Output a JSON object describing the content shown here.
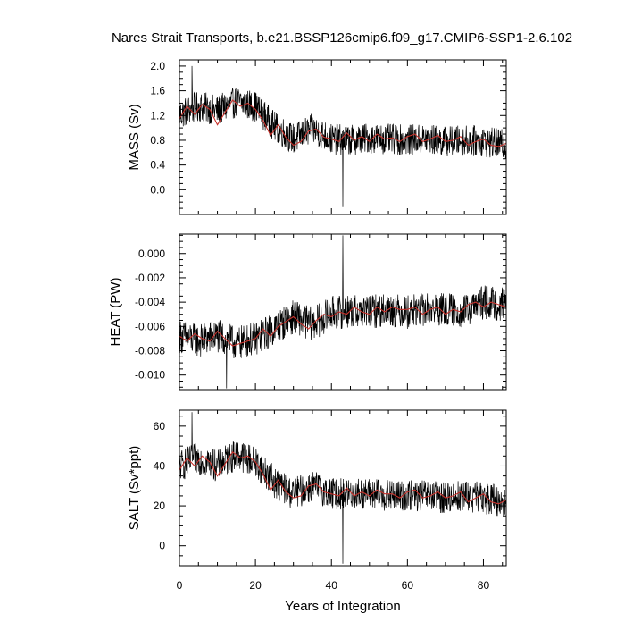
{
  "page_title": "Nares Strait Transports, b.e21.BSSP126cmip6.f09_g17.CMIP6-SSP1-2.6.102",
  "chart_data": [
    {
      "type": "line",
      "ylabel": "MASS (Sv)",
      "xlabel": "Years of Integration",
      "xlim": [
        0,
        86
      ],
      "ylim": [
        -0.4,
        2.1
      ],
      "yticks": [
        0.0,
        0.4,
        0.8,
        1.2,
        1.6,
        2.0
      ],
      "ytick_labels": [
        "0.0",
        "0.4",
        "0.8",
        "1.2",
        "1.6",
        "2.0"
      ],
      "grid": false,
      "series": [
        {
          "role": "monthly",
          "color": "#000000",
          "anchors_x": [
            0,
            5,
            10,
            15,
            20,
            25,
            30,
            35,
            40,
            45,
            50,
            55,
            60,
            65,
            70,
            75,
            80,
            86
          ],
          "anchors_y": [
            1.22,
            1.35,
            1.28,
            1.42,
            1.35,
            1.02,
            0.82,
            0.98,
            0.82,
            0.8,
            0.84,
            0.82,
            0.8,
            0.82,
            0.78,
            0.8,
            0.78,
            0.72
          ],
          "noise": 0.25,
          "spikes": [
            {
              "x": 43.0,
              "y": -0.28
            },
            {
              "x": 3.3,
              "y": 2.0
            }
          ]
        },
        {
          "role": "smoothed",
          "color": "#c8322c",
          "anchors_x": [
            0,
            2,
            4,
            6,
            8,
            10,
            12,
            14,
            16,
            18,
            20,
            22,
            24,
            26,
            28,
            30,
            32,
            34,
            36,
            38,
            40,
            42,
            44,
            46,
            48,
            50,
            52,
            54,
            56,
            58,
            60,
            62,
            64,
            66,
            68,
            70,
            72,
            74,
            76,
            78,
            80,
            82,
            84,
            86
          ],
          "anchors_y": [
            1.15,
            1.35,
            1.22,
            1.38,
            1.3,
            1.05,
            1.25,
            1.45,
            1.35,
            1.4,
            1.3,
            1.12,
            0.88,
            1.05,
            0.85,
            0.72,
            0.78,
            0.95,
            0.98,
            0.85,
            0.82,
            0.78,
            0.92,
            0.8,
            0.86,
            0.78,
            0.9,
            0.82,
            0.84,
            0.78,
            0.86,
            0.9,
            0.78,
            0.82,
            0.88,
            0.78,
            0.8,
            0.86,
            0.72,
            0.78,
            0.82,
            0.72,
            0.7,
            0.75
          ]
        }
      ]
    },
    {
      "type": "line",
      "ylabel": "HEAT (PW)",
      "xlabel": "Years of Integration",
      "xlim": [
        0,
        86
      ],
      "ylim": [
        -0.0112,
        0.0016
      ],
      "yticks": [
        0.0,
        -0.002,
        -0.004,
        -0.006,
        -0.008,
        -0.01
      ],
      "ytick_labels": [
        "0.000",
        "-0.002",
        "-0.004",
        "-0.006",
        "-0.008",
        "-0.010"
      ],
      "grid": false,
      "series": [
        {
          "role": "monthly",
          "color": "#000000",
          "anchors_x": [
            0,
            5,
            10,
            15,
            20,
            25,
            30,
            35,
            40,
            45,
            50,
            55,
            60,
            65,
            70,
            75,
            80,
            86
          ],
          "anchors_y": [
            -0.0068,
            -0.0072,
            -0.0068,
            -0.0074,
            -0.007,
            -0.0062,
            -0.0052,
            -0.0058,
            -0.0049,
            -0.0047,
            -0.0048,
            -0.0046,
            -0.0048,
            -0.0046,
            -0.0046,
            -0.0048,
            -0.004,
            -0.0042
          ],
          "noise": 0.0014,
          "spikes": [
            {
              "x": 43.0,
              "y": 0.0015
            },
            {
              "x": 12.4,
              "y": -0.0111
            }
          ]
        },
        {
          "role": "smoothed",
          "color": "#c8322c",
          "anchors_x": [
            0,
            2,
            4,
            6,
            8,
            10,
            12,
            14,
            16,
            18,
            20,
            22,
            24,
            26,
            28,
            30,
            32,
            34,
            36,
            38,
            40,
            42,
            44,
            46,
            48,
            50,
            52,
            54,
            56,
            58,
            60,
            62,
            64,
            66,
            68,
            70,
            72,
            74,
            76,
            78,
            80,
            82,
            84,
            86
          ],
          "anchors_y": [
            -0.0068,
            -0.0072,
            -0.0066,
            -0.007,
            -0.0072,
            -0.0064,
            -0.007,
            -0.0076,
            -0.0074,
            -0.0072,
            -0.007,
            -0.0062,
            -0.0068,
            -0.006,
            -0.0056,
            -0.0052,
            -0.0058,
            -0.0062,
            -0.0055,
            -0.005,
            -0.0052,
            -0.0048,
            -0.005,
            -0.0044,
            -0.0048,
            -0.005,
            -0.0044,
            -0.0048,
            -0.0044,
            -0.0046,
            -0.0046,
            -0.0044,
            -0.005,
            -0.0046,
            -0.0044,
            -0.005,
            -0.0046,
            -0.0048,
            -0.0042,
            -0.004,
            -0.0044,
            -0.004,
            -0.0042,
            -0.0044
          ]
        }
      ]
    },
    {
      "type": "line",
      "ylabel": "SALT (Sv*ppt)",
      "xlabel": "Years of Integration",
      "xlim": [
        0,
        86
      ],
      "ylim": [
        -10,
        68
      ],
      "yticks": [
        0,
        20,
        40,
        60
      ],
      "ytick_labels": [
        "0",
        "20",
        "40",
        "60"
      ],
      "grid": false,
      "series": [
        {
          "role": "monthly",
          "color": "#000000",
          "anchors_x": [
            0,
            5,
            10,
            15,
            20,
            25,
            30,
            35,
            40,
            45,
            50,
            55,
            60,
            65,
            70,
            75,
            80,
            86
          ],
          "anchors_y": [
            40,
            44,
            40,
            46,
            42,
            32,
            26,
            30,
            26,
            26,
            26,
            25,
            25,
            25,
            24,
            25,
            24,
            22
          ],
          "noise": 8,
          "spikes": [
            {
              "x": 43.0,
              "y": -9
            },
            {
              "x": 3.3,
              "y": 67
            }
          ]
        },
        {
          "role": "smoothed",
          "color": "#c8322c",
          "anchors_x": [
            0,
            2,
            4,
            6,
            8,
            10,
            12,
            14,
            16,
            18,
            20,
            22,
            24,
            26,
            28,
            30,
            32,
            34,
            36,
            38,
            40,
            42,
            44,
            46,
            48,
            50,
            52,
            54,
            56,
            58,
            60,
            62,
            64,
            66,
            68,
            70,
            72,
            74,
            76,
            78,
            80,
            82,
            84,
            86
          ],
          "anchors_y": [
            38,
            44,
            40,
            45,
            42,
            35,
            41,
            47,
            44,
            45,
            42,
            36,
            28,
            33,
            27,
            24,
            25,
            30,
            31,
            27,
            26,
            25,
            29,
            25,
            27,
            25,
            28,
            26,
            26,
            24,
            27,
            28,
            24,
            25,
            27,
            24,
            25,
            27,
            22,
            24,
            26,
            22,
            21,
            23
          ]
        }
      ]
    }
  ],
  "x_axis": {
    "label": "Years of Integration",
    "ticks": [
      0,
      20,
      40,
      60,
      80
    ],
    "tick_labels": [
      "0",
      "20",
      "40",
      "60",
      "80"
    ]
  }
}
